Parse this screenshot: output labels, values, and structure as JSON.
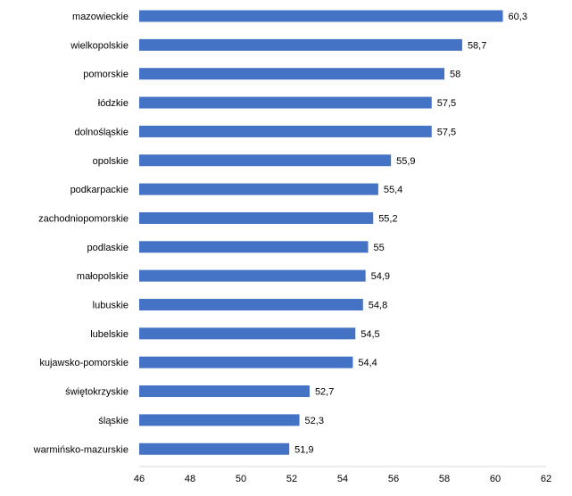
{
  "chart_data": {
    "type": "bar",
    "orientation": "horizontal",
    "title": "",
    "xlabel": "",
    "ylabel": "",
    "xlim": [
      46,
      62
    ],
    "xticks": [
      "46",
      "48",
      "50",
      "52",
      "54",
      "56",
      "58",
      "60",
      "62"
    ],
    "grid": false,
    "legend": "none",
    "bar_color": "#4472C4",
    "categories": [
      "mazowieckie",
      "wielkopolskie",
      "pomorskie",
      "łódzkie",
      "dolnośląskie",
      "opolskie",
      "podkarpackie",
      "zachodniopomorskie",
      "podlaskie",
      "małopolskie",
      "lubuskie",
      "lubelskie",
      "kujawsko-pomorskie",
      "świętokrzyskie",
      "śląskie",
      "warmińsko-mazurskie"
    ],
    "values": [
      60.3,
      58.7,
      58,
      57.5,
      57.5,
      55.9,
      55.4,
      55.2,
      55,
      54.9,
      54.8,
      54.5,
      54.4,
      52.7,
      52.3,
      51.9
    ],
    "value_labels": [
      "60,3",
      "58,7",
      "58",
      "57,5",
      "57,5",
      "55,9",
      "55,4",
      "55,2",
      "55",
      "54,9",
      "54,8",
      "54,5",
      "54,4",
      "52,7",
      "52,3",
      "51,9"
    ]
  }
}
